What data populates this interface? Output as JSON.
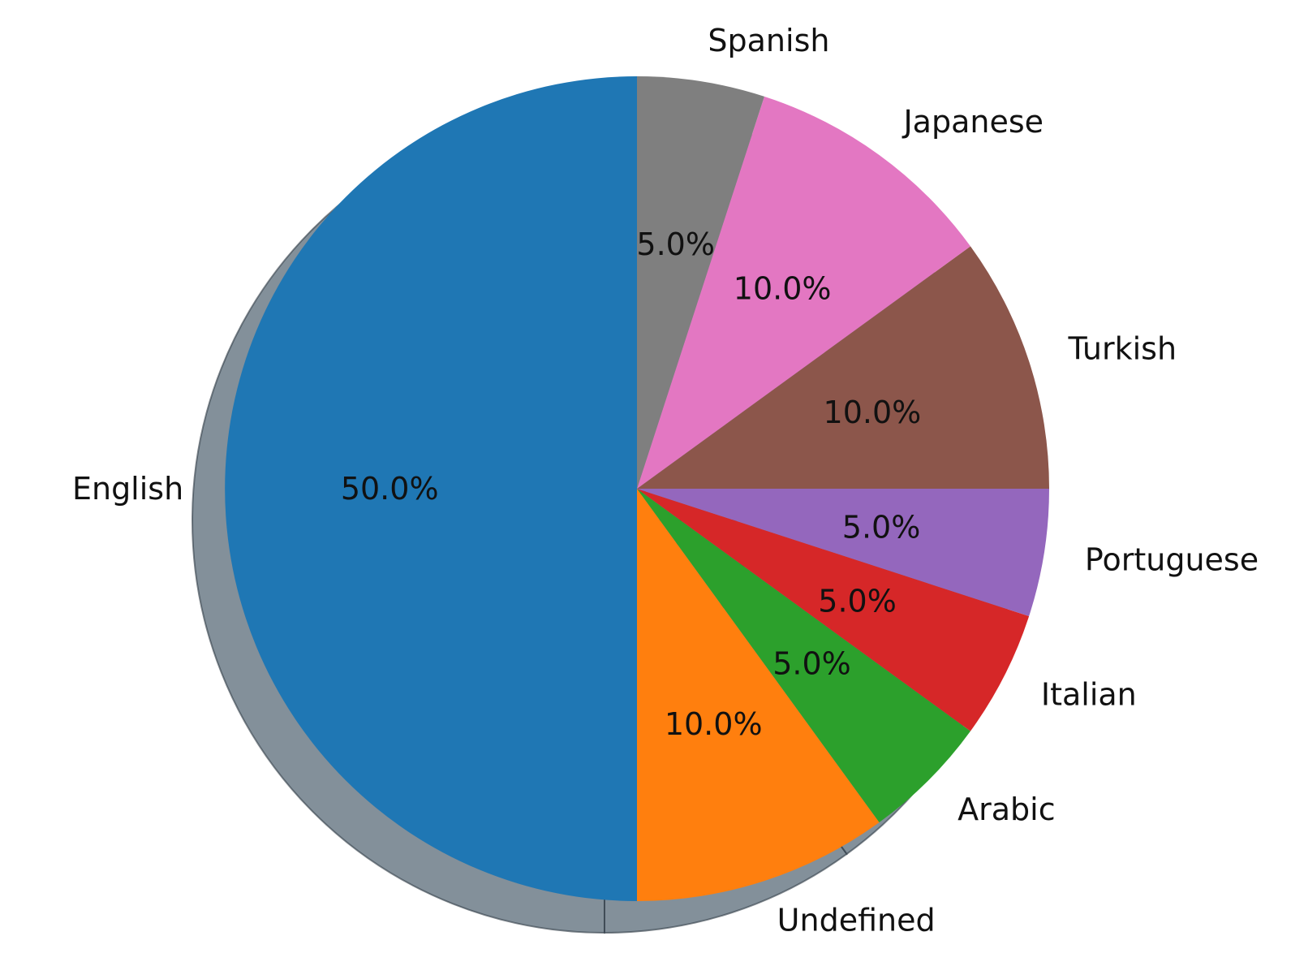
{
  "chart_data": {
    "type": "pie",
    "slices": [
      {
        "label": "English",
        "value": 50.0,
        "display": "50.0%",
        "color": "#1f77b4"
      },
      {
        "label": "Undefined",
        "value": 10.0,
        "display": "10.0%",
        "color": "#ff7f0e"
      },
      {
        "label": "Arabic",
        "value": 5.0,
        "display": "5.0%",
        "color": "#2ca02c"
      },
      {
        "label": "Italian",
        "value": 5.0,
        "display": "5.0%",
        "color": "#d62728"
      },
      {
        "label": "Portuguese",
        "value": 5.0,
        "display": "5.0%",
        "color": "#9467bd"
      },
      {
        "label": "Turkish",
        "value": 10.0,
        "display": "10.0%",
        "color": "#8c564b"
      },
      {
        "label": "Japanese",
        "value": 10.0,
        "display": "10.0%",
        "color": "#e377c2"
      },
      {
        "label": "Spanish",
        "value": 5.0,
        "display": "5.0%",
        "color": "#7f7f7f"
      }
    ],
    "start_angle_deg": 90,
    "direction": "counterclockwise",
    "shadow": true,
    "shadow_color": "#5a6b78"
  }
}
